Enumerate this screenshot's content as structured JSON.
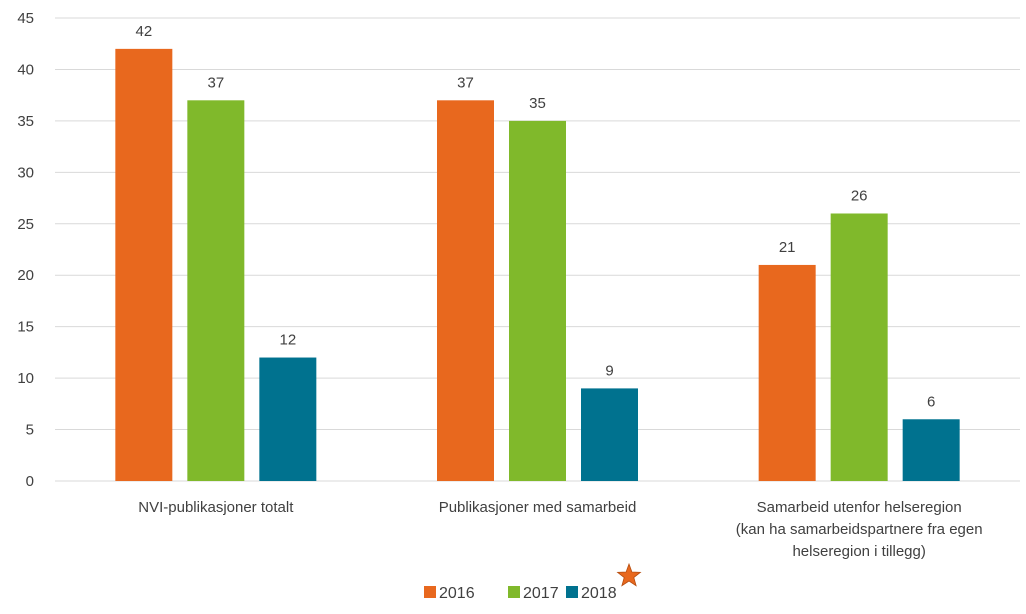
{
  "chart_data": {
    "type": "bar",
    "categories": [
      [
        "NVI-publikasjoner totalt"
      ],
      [
        "Publikasjoner med samarbeid"
      ],
      [
        "Samarbeid utenfor helseregion",
        "(kan ha samarbeidspartnere fra egen",
        "helseregion i tillegg)"
      ]
    ],
    "series": [
      {
        "name": "2016",
        "color": "#E8681E",
        "values": [
          42,
          37,
          21
        ]
      },
      {
        "name": "2017",
        "color": "#80B92B",
        "values": [
          37,
          35,
          26
        ]
      },
      {
        "name": "2018",
        "color": "#00728F",
        "values": [
          12,
          9,
          6
        ]
      }
    ],
    "ylim": [
      0,
      45
    ],
    "yticks": [
      0,
      5,
      10,
      15,
      20,
      25,
      30,
      35,
      40,
      45
    ],
    "grid": true,
    "legend": "bottom",
    "data_labels": true,
    "legend_marker": {
      "series": "2018",
      "icon": "star-icon",
      "color": "#E8681E"
    }
  }
}
